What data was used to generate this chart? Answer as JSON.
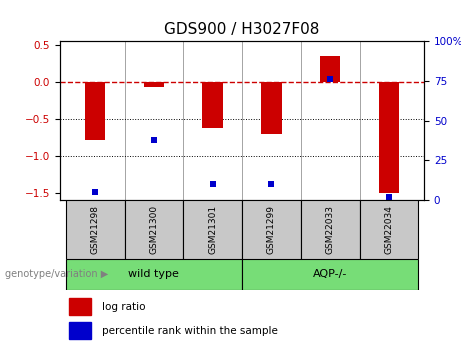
{
  "title": "GDS900 / H3027F08",
  "samples": [
    "GSM21298",
    "GSM21300",
    "GSM21301",
    "GSM21299",
    "GSM22033",
    "GSM22034"
  ],
  "log_ratio": [
    -0.78,
    -0.07,
    -0.62,
    -0.7,
    0.35,
    -1.5
  ],
  "percentile_rank": [
    5,
    38,
    10,
    10,
    76,
    2
  ],
  "bar_color": "#CC0000",
  "dot_color": "#0000CC",
  "left_ylim": [
    -1.6,
    0.55
  ],
  "right_ylim": [
    0,
    110
  ],
  "left_yticks": [
    -1.5,
    -1.0,
    -0.5,
    0.0,
    0.5
  ],
  "right_yticks": [
    0,
    25,
    50,
    75,
    100
  ],
  "right_yticklabels": [
    "0",
    "25",
    "50",
    "75",
    "100%"
  ],
  "dotted_lines": [
    -0.5,
    -1.0
  ],
  "group_box_color": "#C8C8C8",
  "bar_width": 0.35,
  "title_fontsize": 11,
  "tick_fontsize": 7.5,
  "label_fontsize": 7,
  "legend_fontsize": 7.5,
  "sample_fontsize": 6.5,
  "group_fontsize": 8,
  "groups": [
    {
      "label": "wild type",
      "start": 0,
      "end": 2
    },
    {
      "label": "AQP-/-",
      "start": 3,
      "end": 5
    }
  ],
  "group_color": "#77DD77"
}
